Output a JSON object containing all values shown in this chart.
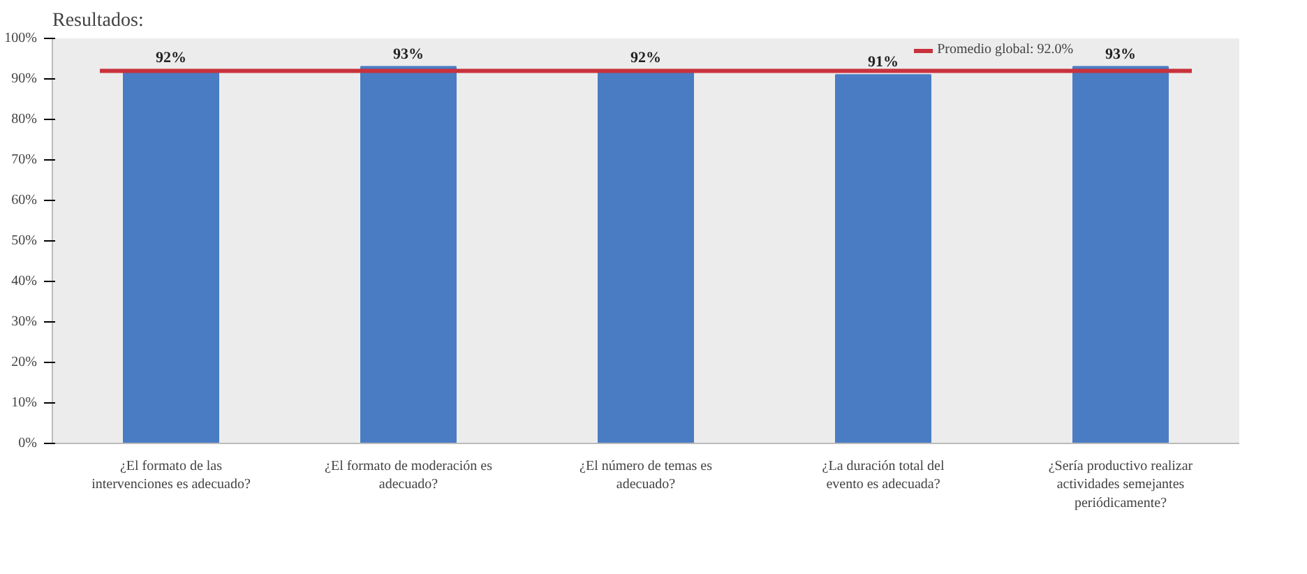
{
  "chart_data": {
    "type": "bar",
    "title": "Resultados:",
    "categories": [
      "¿El formato de las intervenciones es adecuado?",
      "¿El formato de moderación es adecuado?",
      "¿El número de temas es adecuado?",
      "¿La duración total del evento es adecuada?",
      "¿Sería productivo realizar actividades semejantes periódicamente?"
    ],
    "values": [
      92,
      93,
      92,
      91,
      93
    ],
    "color": "#4a7cc4",
    "ylim": [
      0,
      100
    ],
    "yticks": [
      {
        "value": 0,
        "label": "0%"
      },
      {
        "value": 10,
        "label": "10%"
      },
      {
        "value": 20,
        "label": "20%"
      },
      {
        "value": 30,
        "label": "30%"
      },
      {
        "value": 40,
        "label": "40%"
      },
      {
        "value": 50,
        "label": "50%"
      },
      {
        "value": 60,
        "label": "60%"
      },
      {
        "value": 70,
        "label": "70%"
      },
      {
        "value": 80,
        "label": "80%"
      },
      {
        "value": 90,
        "label": "90%"
      },
      {
        "value": 100,
        "label": "100%"
      }
    ],
    "ref_lines": [
      {
        "axis": "y",
        "value": 92,
        "label": "Promedio global: 92.0%",
        "color": "#c8323c"
      }
    ],
    "value_labels": [
      "92%",
      "93%",
      "92%",
      "91%",
      "93%"
    ],
    "grid": false,
    "legend": "top right"
  }
}
